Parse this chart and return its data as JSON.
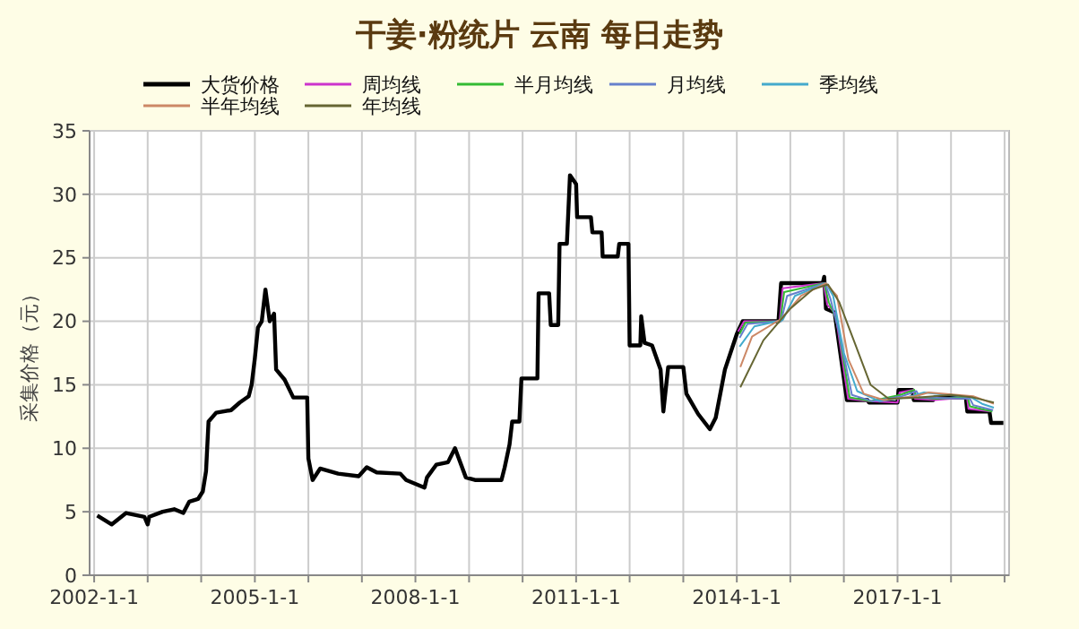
{
  "chart_data": {
    "type": "line",
    "title": "干姜·粉统片 云南 每日走势",
    "ylabel": "采集价格（元）",
    "legend": "top",
    "grid": true,
    "line_style": "solid",
    "marker": "none",
    "xlim": [
      "2001-12-01",
      "2019-02-01"
    ],
    "xticks": [
      {
        "value": "2002-01-01",
        "label": "2002-1-1"
      },
      {
        "value": "2003-01-01",
        "label": null
      },
      {
        "value": "2004-01-01",
        "label": null
      },
      {
        "value": "2005-01-01",
        "label": "2005-1-1"
      },
      {
        "value": "2006-01-01",
        "label": null
      },
      {
        "value": "2007-01-01",
        "label": null
      },
      {
        "value": "2008-01-01",
        "label": "2008-1-1"
      },
      {
        "value": "2009-01-01",
        "label": null
      },
      {
        "value": "2010-01-01",
        "label": null
      },
      {
        "value": "2011-01-01",
        "label": "2011-1-1"
      },
      {
        "value": "2012-01-01",
        "label": null
      },
      {
        "value": "2013-01-01",
        "label": null
      },
      {
        "value": "2014-01-01",
        "label": "2014-1-1"
      },
      {
        "value": "2015-01-01",
        "label": null
      },
      {
        "value": "2016-01-01",
        "label": null
      },
      {
        "value": "2017-01-01",
        "label": "2017-1-1"
      },
      {
        "value": "2018-01-01",
        "label": null
      },
      {
        "value": "2019-01-01",
        "label": null
      }
    ],
    "ylim": [
      0,
      35
    ],
    "yticks": [
      0,
      5,
      10,
      15,
      20,
      25,
      30,
      35
    ],
    "series": [
      {
        "name": "大货价格",
        "color": "#000000",
        "x": [
          "2002-01-22",
          "2002-05-01",
          "2002-08-07",
          "2002-12-10",
          "2003-01-01",
          "2003-01-12",
          "2003-04-13",
          "2003-07-01",
          "2003-09-01",
          "2003-10-12",
          "2003-12-10",
          "2004-01-12",
          "2004-02-03",
          "2004-02-20",
          "2004-04-12",
          "2004-07-23",
          "2004-09-20",
          "2004-11-20",
          "2004-12-10",
          "2005-01-01",
          "2005-01-22",
          "2005-02-17",
          "2005-03-14",
          "2005-04-12",
          "2005-05-12",
          "2005-05-26",
          "2005-07-23",
          "2005-09-20",
          "2005-12-24",
          "2006-01-01",
          "2006-01-30",
          "2006-03-22",
          "2006-07-23",
          "2006-12-10",
          "2007-02-03",
          "2007-04-12",
          "2007-09-20",
          "2007-10-30",
          "2008-03-03",
          "2008-03-20",
          "2008-05-22",
          "2008-08-10",
          "2008-09-27",
          "2008-12-10",
          "2009-02-10",
          "2009-08-10",
          "2009-09-01",
          "2009-10-04",
          "2009-10-22",
          "2009-12-10",
          "2009-12-24",
          "2010-04-12",
          "2010-04-20",
          "2010-07-01",
          "2010-07-12",
          "2010-09-01",
          "2010-09-10",
          "2010-10-30",
          "2010-11-20",
          "2011-01-01",
          "2011-01-08",
          "2011-04-12",
          "2011-04-22",
          "2011-06-24",
          "2011-07-01",
          "2011-10-12",
          "2011-10-22",
          "2011-12-24",
          "2012-01-01",
          "2012-03-14",
          "2012-03-20",
          "2012-04-12",
          "2012-06-02",
          "2012-07-30",
          "2012-08-18",
          "2012-09-20",
          "2013-01-01",
          "2013-01-22",
          "2013-04-12",
          "2013-07-01",
          "2013-08-10",
          "2013-10-12",
          "2014-01-01",
          "2014-02-10",
          "2014-10-12",
          "2014-10-30",
          "2015-08-10",
          "2015-08-20",
          "2015-09-01",
          "2015-10-30",
          "2016-01-22",
          "2016-06-10",
          "2016-06-20",
          "2017-01-01",
          "2017-01-08",
          "2017-04-12",
          "2017-04-22",
          "2017-09-01",
          "2017-09-10",
          "2018-04-12",
          "2018-04-22",
          "2018-09-20",
          "2018-10-01",
          "2018-12-24"
        ],
        "values": [
          4.7,
          4.0,
          4.9,
          4.6,
          4.0,
          4.6,
          5.0,
          5.2,
          4.9,
          5.8,
          6.0,
          6.6,
          8.2,
          12.1,
          12.8,
          13.0,
          13.6,
          14.1,
          15.0,
          17.1,
          19.5,
          20.0,
          22.5,
          20.0,
          20.6,
          16.2,
          15.4,
          14.0,
          14.0,
          9.2,
          7.5,
          8.4,
          8.0,
          7.8,
          8.5,
          8.1,
          8.0,
          7.5,
          6.9,
          7.7,
          8.7,
          8.9,
          10.0,
          7.7,
          7.5,
          7.5,
          8.5,
          10.3,
          12.1,
          12.1,
          15.5,
          15.5,
          22.2,
          22.2,
          19.7,
          19.7,
          26.1,
          26.1,
          31.5,
          30.8,
          28.2,
          28.2,
          27.0,
          27.0,
          25.1,
          25.1,
          26.1,
          26.1,
          18.1,
          18.1,
          20.4,
          18.3,
          18.1,
          16.2,
          12.9,
          16.4,
          16.4,
          14.3,
          12.7,
          11.5,
          12.4,
          16.2,
          19.0,
          20.0,
          20.0,
          23.0,
          23.0,
          23.5,
          21.0,
          20.7,
          13.8,
          13.8,
          13.6,
          13.6,
          14.6,
          14.6,
          13.8,
          13.8,
          14.0,
          14.0,
          12.9,
          12.9,
          12.0,
          12.0
        ]
      },
      {
        "name": "周均线",
        "color": "#cc33cc",
        "x": [
          "2014-01-10",
          "2014-02-20",
          "2014-10-20",
          "2014-11-10",
          "2015-08-15",
          "2015-09-10",
          "2015-11-05",
          "2016-01-30",
          "2016-06-20",
          "2017-01-01",
          "2017-01-15",
          "2017-04-20",
          "2017-04-30",
          "2017-09-10",
          "2018-04-20",
          "2018-04-30",
          "2018-09-30"
        ],
        "values": [
          19.2,
          20.0,
          20.0,
          22.6,
          23.0,
          21.3,
          20.6,
          13.9,
          13.7,
          13.6,
          14.4,
          14.6,
          13.9,
          13.8,
          14.0,
          13.1,
          12.9
        ]
      },
      {
        "name": "半月均线",
        "color": "#33bb33",
        "x": [
          "2014-01-20",
          "2014-03-01",
          "2014-10-25",
          "2014-11-20",
          "2015-08-20",
          "2015-09-20",
          "2015-11-15",
          "2016-02-10",
          "2016-07-01",
          "2017-01-20",
          "2017-04-25",
          "2017-05-10",
          "2017-09-20",
          "2018-04-25",
          "2018-05-10",
          "2018-10-10"
        ],
        "values": [
          19.0,
          19.9,
          20.0,
          22.3,
          23.0,
          21.5,
          20.1,
          14.0,
          13.7,
          14.2,
          14.6,
          14.0,
          13.9,
          14.0,
          13.3,
          12.9
        ]
      },
      {
        "name": "月均线",
        "color": "#6680cc",
        "x": [
          "2014-01-20",
          "2014-03-15",
          "2014-10-30",
          "2014-12-10",
          "2015-08-25",
          "2015-10-01",
          "2015-12-01",
          "2016-02-25",
          "2016-07-15",
          "2017-02-01",
          "2017-05-10",
          "2017-06-01",
          "2018-05-10",
          "2018-06-01",
          "2018-10-15"
        ],
        "values": [
          18.7,
          19.8,
          20.0,
          22.0,
          23.0,
          21.8,
          19.0,
          14.2,
          13.7,
          14.1,
          14.5,
          14.0,
          13.9,
          13.4,
          13.0
        ]
      },
      {
        "name": "季均线",
        "color": "#44aacc",
        "x": [
          "2014-01-20",
          "2014-05-01",
          "2014-11-10",
          "2015-02-01",
          "2015-08-31",
          "2015-10-20",
          "2016-01-01",
          "2016-04-01",
          "2016-09-01",
          "2017-03-01",
          "2017-07-01",
          "2018-05-20",
          "2018-08-01",
          "2018-10-20"
        ],
        "values": [
          18.0,
          19.6,
          20.1,
          22.0,
          23.0,
          22.0,
          17.5,
          14.5,
          13.7,
          14.0,
          14.4,
          14.0,
          13.5,
          13.2
        ]
      },
      {
        "name": "半年均线",
        "color": "#cc8866",
        "x": [
          "2014-01-25",
          "2014-04-15",
          "2014-11-01",
          "2015-03-15",
          "2015-08-31",
          "2015-11-15",
          "2016-02-01",
          "2016-05-15",
          "2016-10-01",
          "2017-05-01",
          "2017-08-01",
          "2018-06-01",
          "2018-10-20"
        ],
        "values": [
          16.4,
          18.8,
          20.2,
          22.0,
          23.0,
          22.0,
          17.0,
          14.3,
          13.8,
          14.1,
          14.4,
          14.1,
          13.5
        ]
      },
      {
        "name": "年均线",
        "color": "#666633",
        "x": [
          "2014-01-25",
          "2014-07-01",
          "2015-01-01",
          "2015-06-01",
          "2015-09-15",
          "2015-12-01",
          "2016-03-15",
          "2016-07-01",
          "2016-11-01",
          "2017-06-01",
          "2018-01-01",
          "2018-06-01",
          "2018-10-20"
        ],
        "values": [
          14.8,
          18.5,
          21.0,
          22.5,
          22.9,
          21.5,
          18.3,
          15.0,
          13.9,
          14.0,
          14.2,
          14.0,
          13.6
        ]
      }
    ]
  }
}
